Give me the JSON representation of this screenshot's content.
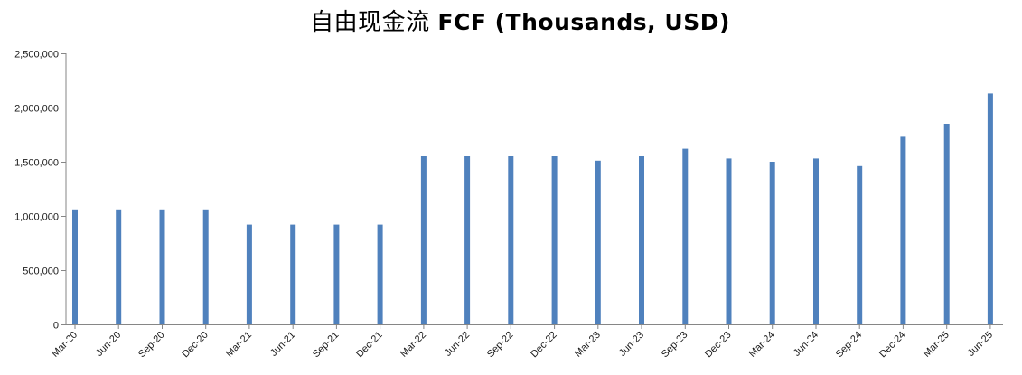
{
  "chart_data": {
    "type": "bar",
    "title_cjk": "自由现金流",
    "title_latin": "FCF (Thousands, USD)",
    "xlabel": "",
    "ylabel": "",
    "ylim": [
      0,
      2500000
    ],
    "yticks": [
      0,
      500000,
      1000000,
      1500000,
      2000000,
      2500000
    ],
    "ytick_labels": [
      "0",
      "500,000",
      "1,000,000",
      "1,500,000",
      "2,000,000",
      "2,500,000"
    ],
    "grid": false,
    "legend": "none",
    "bar_color": "#4f81bd",
    "categories": [
      "Mar-20",
      "Jun-20",
      "Sep-20",
      "Dec-20",
      "Mar-21",
      "Jun-21",
      "Sep-21",
      "Dec-21",
      "Mar-22",
      "Jun-22",
      "Sep-22",
      "Dec-22",
      "Mar-23",
      "Jun-23",
      "Sep-23",
      "Dec-23",
      "Mar-24",
      "Jun-24",
      "Sep-24",
      "Dec-24",
      "Mar-25",
      "Jun-25"
    ],
    "values": [
      1060000,
      1060000,
      1060000,
      1060000,
      920000,
      920000,
      920000,
      920000,
      1550000,
      1550000,
      1550000,
      1550000,
      1510000,
      1550000,
      1620000,
      1530000,
      1500000,
      1530000,
      1460000,
      1730000,
      1850000,
      2130000
    ]
  }
}
